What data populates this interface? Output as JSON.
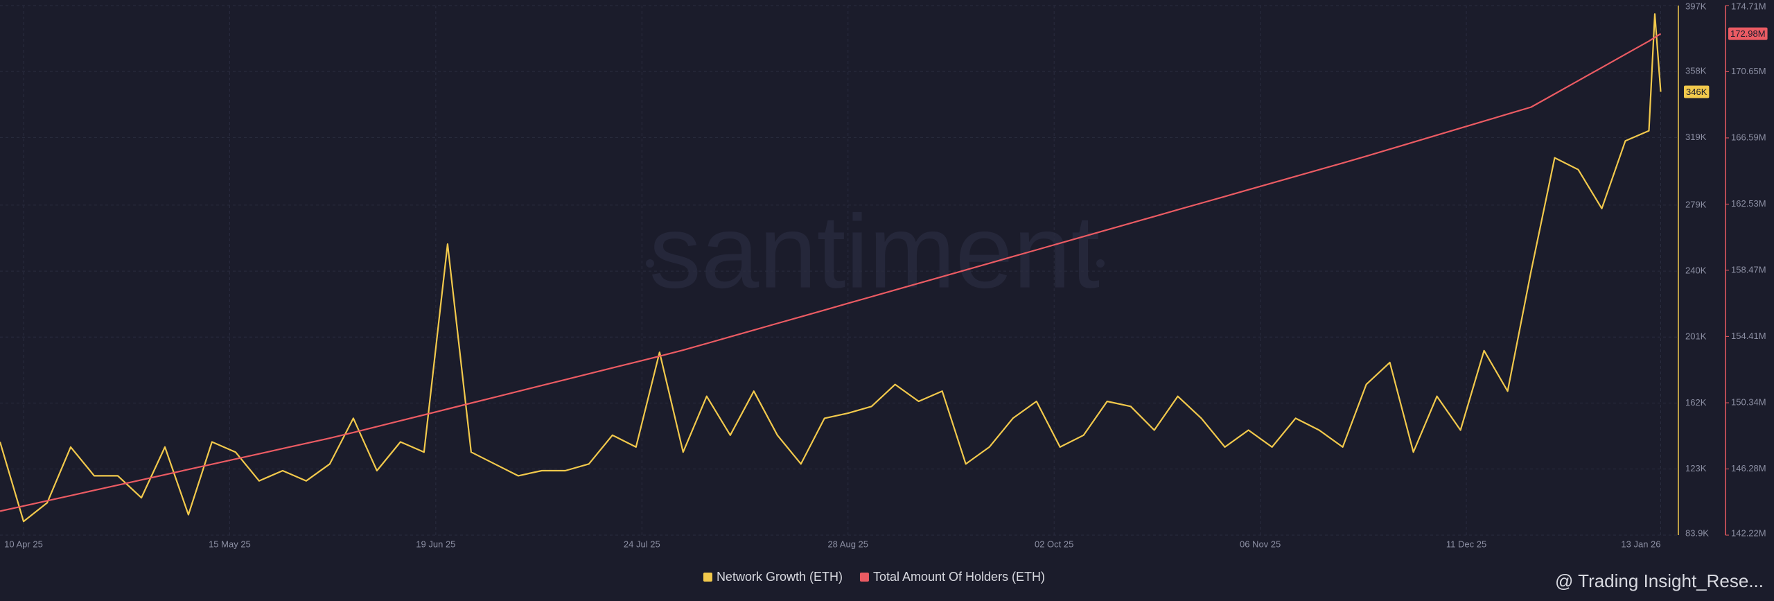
{
  "chart_data": {
    "type": "line",
    "watermark": "santiment",
    "attribution": "@ Trading Insight_Rese...",
    "x": [
      "2025-04-06",
      "2025-04-10",
      "2025-04-14",
      "2025-04-18",
      "2025-04-22",
      "2025-04-26",
      "2025-04-30",
      "2025-05-04",
      "2025-05-08",
      "2025-05-12",
      "2025-05-16",
      "2025-05-20",
      "2025-05-24",
      "2025-05-28",
      "2025-06-01",
      "2025-06-05",
      "2025-06-09",
      "2025-06-13",
      "2025-06-17",
      "2025-06-21",
      "2025-06-25",
      "2025-06-29",
      "2025-07-03",
      "2025-07-07",
      "2025-07-11",
      "2025-07-15",
      "2025-07-19",
      "2025-07-23",
      "2025-07-27",
      "2025-07-31",
      "2025-08-04",
      "2025-08-08",
      "2025-08-12",
      "2025-08-16",
      "2025-08-20",
      "2025-08-24",
      "2025-08-28",
      "2025-09-01",
      "2025-09-05",
      "2025-09-09",
      "2025-09-13",
      "2025-09-17",
      "2025-09-21",
      "2025-09-25",
      "2025-09-29",
      "2025-10-03",
      "2025-10-07",
      "2025-10-11",
      "2025-10-15",
      "2025-10-19",
      "2025-10-23",
      "2025-10-27",
      "2025-10-31",
      "2025-11-04",
      "2025-11-08",
      "2025-11-12",
      "2025-11-16",
      "2025-11-20",
      "2025-11-24",
      "2025-11-28",
      "2025-12-02",
      "2025-12-06",
      "2025-12-10",
      "2025-12-14",
      "2025-12-18",
      "2025-12-22",
      "2025-12-26",
      "2025-12-30",
      "2026-01-03",
      "2026-01-07",
      "2026-01-11",
      "2026-01-12",
      "2026-01-13"
    ],
    "series": [
      {
        "name": "Network Growth (ETH)",
        "color": "#f2c94c",
        "axis": "y",
        "values": [
          139,
          92,
          103,
          136,
          119,
          119,
          106,
          136,
          96,
          139,
          133,
          116,
          122,
          116,
          126,
          153,
          122,
          139,
          133,
          256,
          133,
          126,
          119,
          122,
          122,
          126,
          143,
          136,
          192,
          133,
          166,
          143,
          169,
          143,
          126,
          153,
          156,
          160,
          173,
          163,
          169,
          126,
          136,
          153,
          163,
          136,
          143,
          163,
          160,
          146,
          166,
          153,
          136,
          146,
          136,
          153,
          146,
          136,
          173,
          186,
          133,
          166,
          146,
          193,
          169,
          240,
          307,
          300,
          277,
          317,
          323,
          392,
          346
        ],
        "current_label": {
          "value": 346,
          "label": "346K"
        }
      },
      {
        "name": "Total Amount Of Holders (ETH)",
        "color": "#eb5b63",
        "axis": "y2",
        "values": [
          143.69,
          144.01,
          144.33,
          144.65,
          144.97,
          145.29,
          145.61,
          145.93,
          146.25,
          146.57,
          146.89,
          147.21,
          147.53,
          147.85,
          148.17,
          148.52,
          148.88,
          149.24,
          149.6,
          149.96,
          150.32,
          150.68,
          151.04,
          151.4,
          151.76,
          152.12,
          152.48,
          152.84,
          153.2,
          153.57,
          153.98,
          154.39,
          154.8,
          155.21,
          155.62,
          156.03,
          156.44,
          156.85,
          157.26,
          157.67,
          158.08,
          158.49,
          158.9,
          159.31,
          159.72,
          160.13,
          160.54,
          160.95,
          161.36,
          161.77,
          162.18,
          162.59,
          163.0,
          163.41,
          163.82,
          164.23,
          164.64,
          165.05,
          165.47,
          165.9,
          166.33,
          166.76,
          167.19,
          167.62,
          168.05,
          168.48,
          169.29,
          170.1,
          170.91,
          171.72,
          172.53,
          172.76,
          172.98
        ],
        "current_label": {
          "value": 172.98,
          "label": "172.98M"
        }
      }
    ],
    "xlim": [
      "2025-04-06",
      "2026-01-16"
    ],
    "xticks": [
      {
        "value": "2025-04-10",
        "label": "10 Apr 25"
      },
      {
        "value": "2025-05-15",
        "label": "15 May 25"
      },
      {
        "value": "2025-06-19",
        "label": "19 Jun 25"
      },
      {
        "value": "2025-07-24",
        "label": "24 Jul 25"
      },
      {
        "value": "2025-08-28",
        "label": "28 Aug 25"
      },
      {
        "value": "2025-10-02",
        "label": "02 Oct 25"
      },
      {
        "value": "2025-11-06",
        "label": "06 Nov 25"
      },
      {
        "value": "2025-12-11",
        "label": "11 Dec 25"
      },
      {
        "value": "2026-01-13",
        "label": "13 Jan 26"
      }
    ],
    "ylim": [
      83.9,
      397
    ],
    "yticks": [
      {
        "value": 83.9,
        "label": "83.9K"
      },
      {
        "value": 123,
        "label": "123K"
      },
      {
        "value": 162,
        "label": "162K"
      },
      {
        "value": 201,
        "label": "201K"
      },
      {
        "value": 240,
        "label": "240K"
      },
      {
        "value": 279,
        "label": "279K"
      },
      {
        "value": 319,
        "label": "319K"
      },
      {
        "value": 358,
        "label": "358K"
      },
      {
        "value": 397,
        "label": "397K"
      }
    ],
    "y2lim": [
      142.22,
      174.71
    ],
    "y2ticks": [
      {
        "value": 142.22,
        "label": "142.22M"
      },
      {
        "value": 146.28,
        "label": "146.28M"
      },
      {
        "value": 150.34,
        "label": "150.34M"
      },
      {
        "value": 154.41,
        "label": "154.41M"
      },
      {
        "value": 158.47,
        "label": "158.47M"
      },
      {
        "value": 162.53,
        "label": "162.53M"
      },
      {
        "value": 166.59,
        "label": "166.59M"
      },
      {
        "value": 170.65,
        "label": "170.65M"
      },
      {
        "value": 174.71,
        "label": "174.71M"
      }
    ],
    "grid": true
  }
}
